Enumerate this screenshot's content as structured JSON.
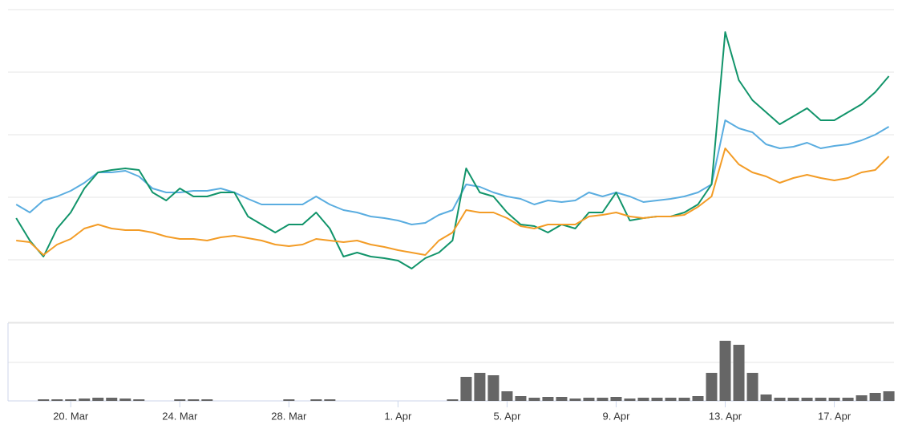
{
  "chart_data": [
    {
      "type": "line",
      "x": [
        -2,
        -1.5,
        -1,
        -0.5,
        0,
        0.5,
        1,
        1.5,
        2,
        2.5,
        3,
        3.5,
        4,
        4.5,
        5,
        5.5,
        6,
        6.5,
        7,
        7.5,
        8,
        8.5,
        9,
        9.5,
        10,
        10.5,
        11,
        11.5,
        12,
        12.5,
        13,
        13.5,
        14,
        14.5,
        15,
        15.5,
        16,
        16.5,
        17,
        17.5,
        18,
        18.5,
        19,
        19.5,
        20,
        20.5,
        21,
        21.5,
        22,
        22.5,
        23,
        23.5,
        24,
        24.5,
        25,
        25.5,
        26,
        26.5,
        27,
        27.5,
        28,
        28.5,
        29,
        29.5,
        30
      ],
      "series": [
        {
          "color": "#5aade0",
          "values": [
            147,
            137,
            152,
            157,
            164,
            174,
            187,
            187,
            189,
            182,
            167,
            162,
            162,
            164,
            164,
            167,
            162,
            154,
            147,
            147,
            147,
            147,
            157,
            147,
            140,
            137,
            132,
            130,
            127,
            122,
            124,
            134,
            140,
            172,
            169,
            162,
            157,
            154,
            147,
            152,
            150,
            152,
            162,
            157,
            162,
            157,
            150,
            152,
            154,
            157,
            162,
            172,
            252,
            242,
            237,
            222,
            217,
            219,
            224,
            217,
            220,
            222,
            227,
            234,
            244
          ]
        },
        {
          "color": "#11946a",
          "values": [
            130,
            102,
            82,
            117,
            137,
            167,
            187,
            190,
            192,
            190,
            162,
            152,
            167,
            157,
            157,
            162,
            162,
            132,
            122,
            112,
            122,
            122,
            137,
            117,
            82,
            87,
            82,
            80,
            77,
            67,
            80,
            87,
            102,
            192,
            162,
            157,
            137,
            122,
            120,
            112,
            122,
            117,
            137,
            137,
            162,
            127,
            130,
            132,
            132,
            137,
            147,
            172,
            362,
            302,
            277,
            262,
            247,
            257,
            267,
            252,
            252,
            262,
            272,
            287,
            307
          ]
        },
        {
          "color": "#f39c26",
          "values": [
            102,
            100,
            84,
            97,
            104,
            117,
            122,
            117,
            115,
            115,
            112,
            107,
            104,
            104,
            102,
            106,
            108,
            105,
            102,
            97,
            95,
            97,
            104,
            102,
            100,
            102,
            97,
            94,
            90,
            87,
            84,
            102,
            112,
            140,
            137,
            137,
            130,
            120,
            117,
            122,
            122,
            122,
            132,
            134,
            137,
            132,
            130,
            132,
            132,
            134,
            144,
            157,
            217,
            197,
            187,
            182,
            174,
            180,
            184,
            180,
            177,
            180,
            187,
            190,
            207
          ]
        }
      ],
      "xlim": [
        -2.3,
        30.1
      ],
      "ylim": [
        0,
        390
      ],
      "yticks": [
        0,
        78,
        156,
        234,
        312,
        390
      ],
      "grid": true
    },
    {
      "type": "bar",
      "x": [
        -2,
        -1.5,
        -1,
        -0.5,
        0,
        0.5,
        1,
        1.5,
        2,
        2.5,
        3,
        3.5,
        4,
        4.5,
        5,
        5.5,
        6,
        6.5,
        7,
        7.5,
        8,
        8.5,
        9,
        9.5,
        10,
        10.5,
        11,
        11.5,
        12,
        12.5,
        13,
        13.5,
        14,
        14.5,
        15,
        15.5,
        16,
        16.5,
        17,
        17.5,
        18,
        18.5,
        19,
        19.5,
        20,
        20.5,
        21,
        21.5,
        22,
        22.5,
        23,
        23.5,
        24,
        24.5,
        25,
        25.5,
        26,
        26.5,
        27,
        27.5,
        28,
        28.5,
        29,
        29.5,
        30
      ],
      "values": [
        0,
        0,
        2,
        2,
        2,
        3,
        4,
        4,
        3,
        2,
        0,
        0,
        2,
        2,
        2,
        0,
        0,
        0,
        0,
        0,
        2,
        0,
        2,
        2,
        0,
        0,
        0,
        0,
        0,
        0,
        0,
        0,
        2,
        30,
        35,
        32,
        12,
        6,
        4,
        5,
        5,
        3,
        4,
        4,
        5,
        3,
        4,
        4,
        4,
        4,
        6,
        35,
        75,
        70,
        35,
        8,
        4,
        4,
        4,
        4,
        4,
        4,
        7,
        10,
        12
      ],
      "color": "#666666",
      "xlim": [
        -2.3,
        30.1
      ],
      "ylim": [
        0,
        97
      ],
      "yticks": [
        0,
        48,
        97
      ],
      "grid": true,
      "xticks": [
        {
          "value": 0,
          "label": "20. Mar"
        },
        {
          "value": 4,
          "label": "24. Mar"
        },
        {
          "value": 8,
          "label": "28. Mar"
        },
        {
          "value": 12,
          "label": "1. Apr"
        },
        {
          "value": 16,
          "label": "5. Apr"
        },
        {
          "value": 20,
          "label": "9. Apr"
        },
        {
          "value": 24,
          "label": "13. Apr"
        },
        {
          "value": 28,
          "label": "17. Apr"
        }
      ]
    }
  ]
}
